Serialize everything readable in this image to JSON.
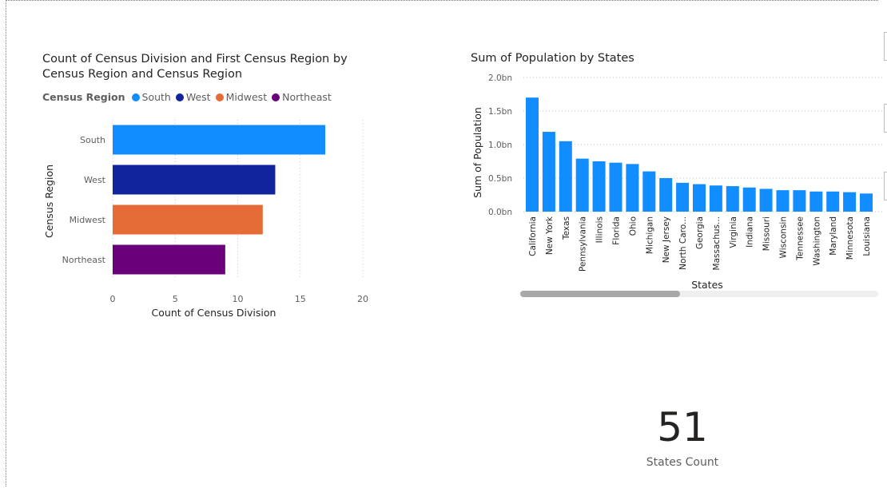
{
  "chart_data": [
    {
      "type": "bar",
      "orientation": "horizontal",
      "title": "Count of Census Division and First Census Region by Census Region and Census Region",
      "title_lines": [
        "Count of Census Division and First Census Region by",
        "Census Region and Census Region"
      ],
      "legend_title": "Census Region",
      "legend": [
        {
          "name": "South",
          "color": "#118DFF"
        },
        {
          "name": "West",
          "color": "#12239E"
        },
        {
          "name": "Midwest",
          "color": "#E66C37"
        },
        {
          "name": "Northeast",
          "color": "#6B007B"
        }
      ],
      "categories": [
        "South",
        "West",
        "Midwest",
        "Northeast"
      ],
      "values": [
        17,
        13,
        12,
        9
      ],
      "xlabel": "Count of Census Division",
      "ylabel": "Census Region",
      "xlim": [
        0,
        20
      ],
      "xticks": [
        0,
        5,
        10,
        15,
        20
      ],
      "grid": true
    },
    {
      "type": "bar",
      "orientation": "vertical",
      "title": "Sum of Population by States",
      "categories": [
        "California",
        "New York",
        "Texas",
        "Pennsylvania",
        "Illinois",
        "Florida",
        "Ohio",
        "Michigan",
        "New Jersey",
        "North Caro...",
        "Georgia",
        "Massachus...",
        "Virginia",
        "Indiana",
        "Missouri",
        "Wisconsin",
        "Tennessee",
        "Washington",
        "Maryland",
        "Minnesota",
        "Louisiana"
      ],
      "values": [
        1.7,
        1.19,
        1.05,
        0.79,
        0.75,
        0.73,
        0.71,
        0.6,
        0.5,
        0.43,
        0.41,
        0.39,
        0.38,
        0.36,
        0.34,
        0.32,
        0.32,
        0.3,
        0.3,
        0.29,
        0.27
      ],
      "color": "#118DFF",
      "xlabel": "States",
      "ylabel": "Sum of Population",
      "ylim": [
        0,
        2.0
      ],
      "yticks": [
        "0.0bn",
        "0.5bn",
        "1.0bn",
        "1.5bn",
        "2.0bn"
      ],
      "grid": true
    }
  ],
  "card": {
    "value": "51",
    "label": "States Count"
  }
}
